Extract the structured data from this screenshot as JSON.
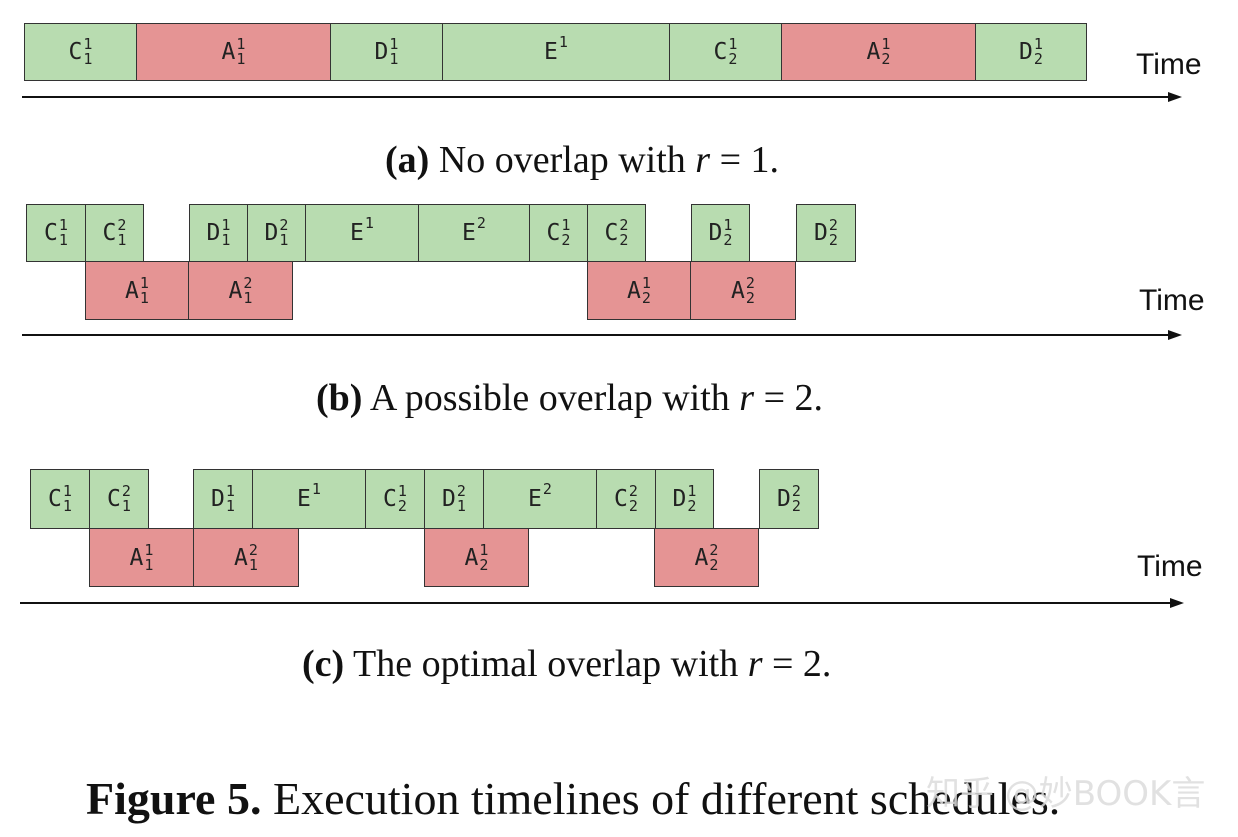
{
  "panels": [
    {
      "time_label": "Time",
      "caption": {
        "tag": "(a)",
        "text": "No overlap with",
        "var": "r",
        "eq": "= 1."
      },
      "blocks": [
        {
          "base": "C",
          "sup": "1",
          "sub": "1",
          "color": "green"
        },
        {
          "base": "A",
          "sup": "1",
          "sub": "1",
          "color": "red"
        },
        {
          "base": "D",
          "sup": "1",
          "sub": "1",
          "color": "green"
        },
        {
          "base": "E",
          "sup": "1",
          "sub": "",
          "color": "green"
        },
        {
          "base": "C",
          "sup": "1",
          "sub": "2",
          "color": "green"
        },
        {
          "base": "A",
          "sup": "1",
          "sub": "2",
          "color": "red"
        },
        {
          "base": "D",
          "sup": "1",
          "sub": "2",
          "color": "green"
        }
      ]
    },
    {
      "time_label": "Time",
      "caption": {
        "tag": "(b)",
        "text": "A possible overlap with",
        "var": "r",
        "eq": "= 2."
      },
      "blocks": [
        {
          "base": "C",
          "sup": "1",
          "sub": "1",
          "color": "green"
        },
        {
          "base": "C",
          "sup": "2",
          "sub": "1",
          "color": "green"
        },
        {
          "base": "D",
          "sup": "1",
          "sub": "1",
          "color": "green"
        },
        {
          "base": "D",
          "sup": "2",
          "sub": "1",
          "color": "green"
        },
        {
          "base": "E",
          "sup": "1",
          "sub": "",
          "color": "green"
        },
        {
          "base": "E",
          "sup": "2",
          "sub": "",
          "color": "green"
        },
        {
          "base": "C",
          "sup": "1",
          "sub": "2",
          "color": "green"
        },
        {
          "base": "C",
          "sup": "2",
          "sub": "2",
          "color": "green"
        },
        {
          "base": "D",
          "sup": "1",
          "sub": "2",
          "color": "green"
        },
        {
          "base": "D",
          "sup": "2",
          "sub": "2",
          "color": "green"
        },
        {
          "base": "A",
          "sup": "1",
          "sub": "1",
          "color": "red"
        },
        {
          "base": "A",
          "sup": "2",
          "sub": "1",
          "color": "red"
        },
        {
          "base": "A",
          "sup": "1",
          "sub": "2",
          "color": "red"
        },
        {
          "base": "A",
          "sup": "2",
          "sub": "2",
          "color": "red"
        }
      ]
    },
    {
      "time_label": "Time",
      "caption": {
        "tag": "(c)",
        "text": "The optimal overlap with",
        "var": "r",
        "eq": "= 2."
      },
      "blocks": [
        {
          "base": "C",
          "sup": "1",
          "sub": "1",
          "color": "green"
        },
        {
          "base": "C",
          "sup": "2",
          "sub": "1",
          "color": "green"
        },
        {
          "base": "D",
          "sup": "1",
          "sub": "1",
          "color": "green"
        },
        {
          "base": "E",
          "sup": "1",
          "sub": "",
          "color": "green"
        },
        {
          "base": "C",
          "sup": "1",
          "sub": "2",
          "color": "green"
        },
        {
          "base": "D",
          "sup": "2",
          "sub": "1",
          "color": "green"
        },
        {
          "base": "E",
          "sup": "2",
          "sub": "",
          "color": "green"
        },
        {
          "base": "C",
          "sup": "2",
          "sub": "2",
          "color": "green"
        },
        {
          "base": "D",
          "sup": "1",
          "sub": "2",
          "color": "green"
        },
        {
          "base": "D",
          "sup": "2",
          "sub": "2",
          "color": "green"
        },
        {
          "base": "A",
          "sup": "1",
          "sub": "1",
          "color": "red"
        },
        {
          "base": "A",
          "sup": "2",
          "sub": "1",
          "color": "red"
        },
        {
          "base": "A",
          "sup": "1",
          "sub": "2",
          "color": "red"
        },
        {
          "base": "A",
          "sup": "2",
          "sub": "2",
          "color": "red"
        }
      ]
    }
  ],
  "figure_caption": {
    "tag": "Figure 5.",
    "text": "Execution timelines of different schedules."
  },
  "watermark": "知乎 @妙BOOK言",
  "colors": {
    "green": "#b8dcb0",
    "red": "#e59494"
  }
}
